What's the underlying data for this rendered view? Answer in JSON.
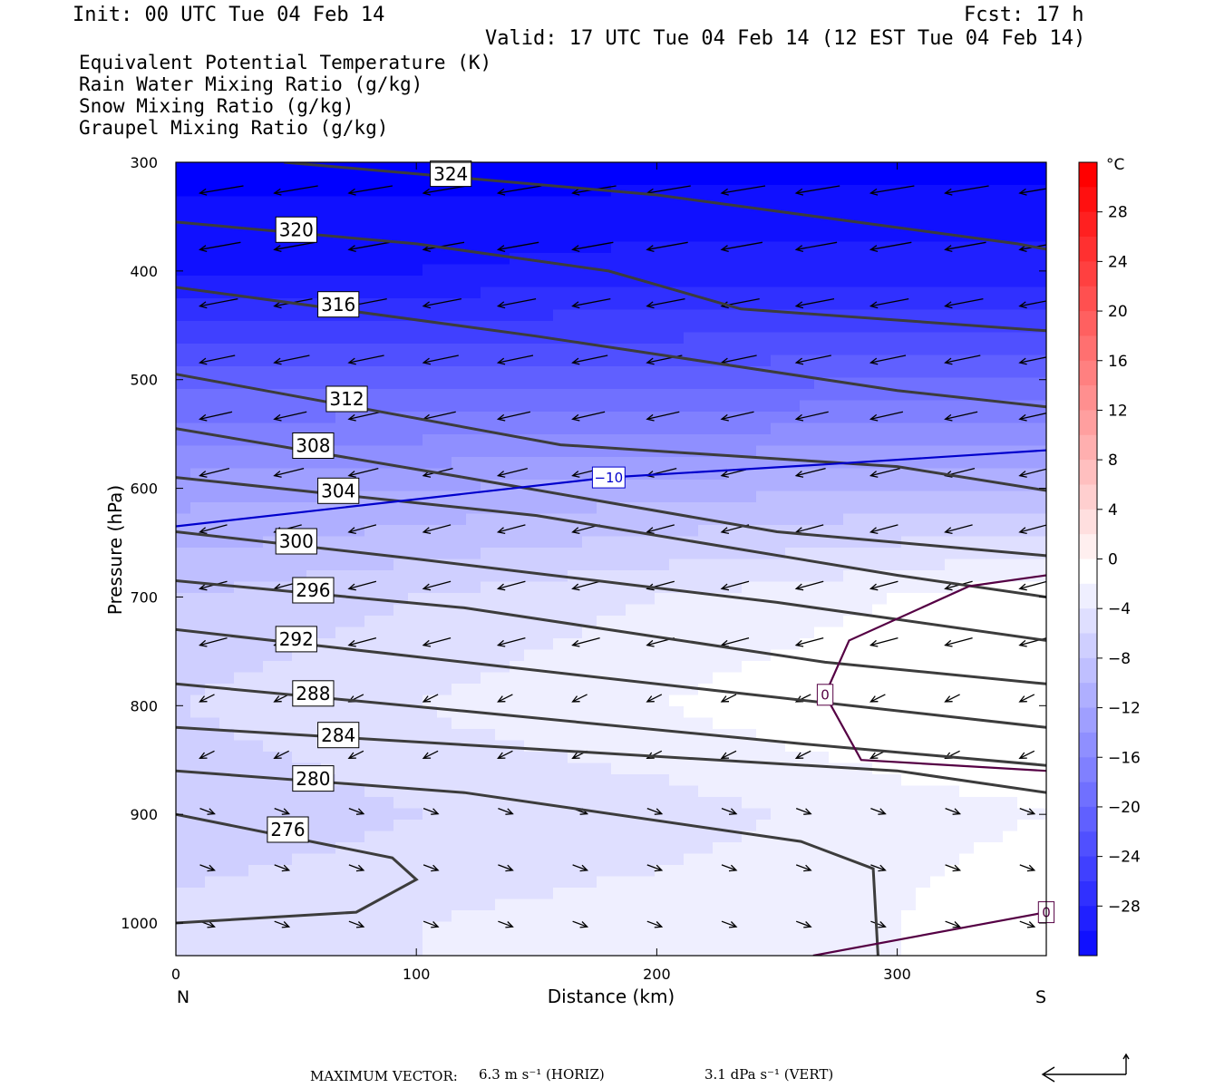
{
  "header": {
    "init": "Init: 00 UTC Tue 04 Feb 14",
    "fcst": "Fcst:   17 h",
    "valid": "Valid: 17 UTC Tue 04 Feb 14 (12 EST Tue 04 Feb 14)"
  },
  "legend": {
    "items": [
      {
        "label": "Equivalent Potential Temperature (K)",
        "color": "#555555"
      },
      {
        "label": "Rain Water Mixing Ratio (g/kg)",
        "color": "#118811"
      },
      {
        "label": "Snow Mixing Ratio (g/kg)",
        "color": "#f09050"
      },
      {
        "label": "Graupel Mixing Ratio (g/kg)",
        "color": "#ee66ee"
      }
    ]
  },
  "chart_data": {
    "type": "heatmap",
    "description_of_axes": {
      "xlabel": "Distance (km)",
      "ylabel": "Pressure (hPa)",
      "x_ticks": [
        0,
        100,
        200,
        300
      ],
      "y_ticks": [
        300,
        400,
        500,
        600,
        700,
        800,
        900,
        1000
      ],
      "xlim": [
        0,
        362
      ],
      "ylim": [
        300,
        1030
      ],
      "y_inverted": true,
      "left_end_label": "N",
      "right_end_label": "S"
    },
    "colorbar": {
      "unit": "°C",
      "ticks": [
        28,
        24,
        20,
        16,
        12,
        8,
        4,
        0,
        -4,
        -8,
        -12,
        -16,
        -20,
        -24,
        -28
      ],
      "range": [
        -32,
        32
      ],
      "low_color": "#0000ff",
      "high_color": "#ff0000"
    },
    "temperature_field": {
      "x": [
        0,
        100,
        200,
        300,
        362
      ],
      "p": [
        300,
        400,
        500,
        600,
        700,
        800,
        900,
        1000
      ],
      "values": [
        [
          -32,
          -32,
          -32,
          -32,
          -32
        ],
        [
          -29,
          -29,
          -28,
          -28,
          -28
        ],
        [
          -20,
          -20,
          -20,
          -19,
          -19
        ],
        [
          -12,
          -11,
          -10,
          -9,
          -9
        ],
        [
          -7,
          -5,
          -3,
          -1,
          1
        ],
        [
          -5,
          -3,
          -1,
          1,
          1
        ],
        [
          -7,
          -5,
          -4,
          -2,
          -1
        ],
        [
          -4,
          -3,
          -2,
          -1,
          1
        ]
      ]
    },
    "theta_e_contours": [
      {
        "level": 324,
        "points": [
          [
            45,
            300
          ],
          [
            200,
            330
          ],
          [
            350,
            375
          ],
          [
            362,
            380
          ]
        ],
        "label": "324"
      },
      {
        "level": 320,
        "points": [
          [
            0,
            355
          ],
          [
            100,
            375
          ],
          [
            180,
            400
          ],
          [
            235,
            435
          ],
          [
            362,
            455
          ]
        ],
        "label": "320"
      },
      {
        "level": 316,
        "points": [
          [
            0,
            415
          ],
          [
            150,
            460
          ],
          [
            300,
            510
          ],
          [
            362,
            525
          ]
        ],
        "label": "316"
      },
      {
        "level": 312,
        "points": [
          [
            0,
            495
          ],
          [
            160,
            560
          ],
          [
            300,
            580
          ],
          [
            362,
            602
          ]
        ],
        "label": "312"
      },
      {
        "level": 308,
        "points": [
          [
            0,
            545
          ],
          [
            120,
            590
          ],
          [
            250,
            640
          ],
          [
            362,
            662
          ]
        ],
        "label": "308"
      },
      {
        "level": 304,
        "points": [
          [
            0,
            590
          ],
          [
            150,
            625
          ],
          [
            300,
            680
          ],
          [
            362,
            700
          ]
        ],
        "label": "304"
      },
      {
        "level": 300,
        "points": [
          [
            0,
            640
          ],
          [
            100,
            665
          ],
          [
            250,
            705
          ],
          [
            362,
            740
          ]
        ],
        "label": "300"
      },
      {
        "level": 296,
        "points": [
          [
            0,
            685
          ],
          [
            120,
            710
          ],
          [
            270,
            760
          ],
          [
            362,
            780
          ]
        ],
        "label": "296"
      },
      {
        "level": 292,
        "points": [
          [
            0,
            730
          ],
          [
            100,
            755
          ],
          [
            220,
            785
          ],
          [
            362,
            820
          ]
        ],
        "label": "292"
      },
      {
        "level": 288,
        "points": [
          [
            0,
            780
          ],
          [
            120,
            805
          ],
          [
            260,
            835
          ],
          [
            362,
            855
          ]
        ],
        "label": "288"
      },
      {
        "level": 284,
        "points": [
          [
            0,
            820
          ],
          [
            150,
            840
          ],
          [
            300,
            860
          ],
          [
            362,
            880
          ]
        ],
        "label": "284"
      },
      {
        "level": 280,
        "points": [
          [
            0,
            860
          ],
          [
            120,
            880
          ],
          [
            260,
            925
          ],
          [
            290,
            950
          ],
          [
            292,
            1030
          ]
        ],
        "label": "280"
      },
      {
        "level": 276,
        "points": [
          [
            0,
            900
          ],
          [
            90,
            940
          ],
          [
            100,
            960
          ],
          [
            75,
            990
          ],
          [
            0,
            1000
          ]
        ],
        "label": "276"
      }
    ],
    "temperature_contours": [
      {
        "level": -10,
        "points": [
          [
            0,
            635
          ],
          [
            100,
            610
          ],
          [
            180,
            590
          ],
          [
            270,
            578
          ],
          [
            362,
            565
          ]
        ],
        "label": "−10",
        "color": "#0000cc"
      },
      {
        "level": 0,
        "points": [
          [
            362,
            680
          ],
          [
            330,
            690
          ],
          [
            280,
            740
          ],
          [
            270,
            790
          ],
          [
            285,
            850
          ],
          [
            362,
            860
          ]
        ],
        "label": "0",
        "color": "#550044"
      },
      {
        "level": 0,
        "points": [
          [
            265,
            1030
          ],
          [
            362,
            990
          ]
        ],
        "label": "0",
        "color": "#550044"
      }
    ],
    "vectors": {
      "max_horiz": "6.3 m s⁻¹ (HORIZ)",
      "max_vert": "3.1 dPa s⁻¹ (VERT)"
    }
  },
  "footer": {
    "max_vector_label": "MAXIMUM VECTOR:",
    "horiz": "6.3 m s⁻¹ (HORIZ)",
    "vert": "3.1 dPa s⁻¹ (VERT)"
  }
}
